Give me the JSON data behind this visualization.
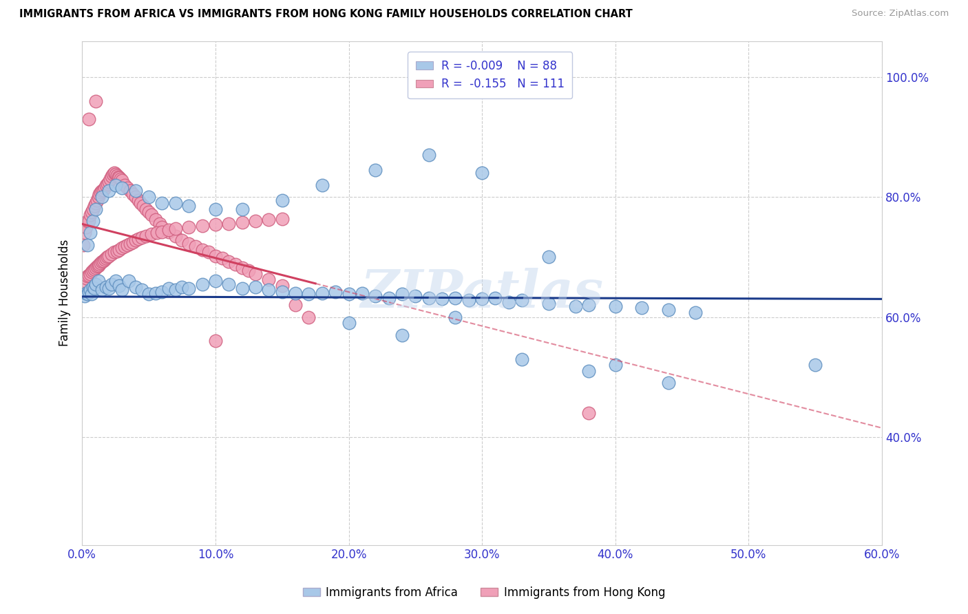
{
  "title": "IMMIGRANTS FROM AFRICA VS IMMIGRANTS FROM HONG KONG FAMILY HOUSEHOLDS CORRELATION CHART",
  "source": "Source: ZipAtlas.com",
  "ylabel": "Family Households",
  "legend_label_blue": "Immigrants from Africa",
  "legend_label_pink": "Immigrants from Hong Kong",
  "R_blue": -0.009,
  "N_blue": 88,
  "R_pink": -0.155,
  "N_pink": 111,
  "xlim": [
    0.0,
    0.6
  ],
  "ylim": [
    0.22,
    1.06
  ],
  "xtick_labels": [
    "0.0%",
    "10.0%",
    "20.0%",
    "30.0%",
    "40.0%",
    "50.0%",
    "60.0%"
  ],
  "xtick_vals": [
    0.0,
    0.1,
    0.2,
    0.3,
    0.4,
    0.5,
    0.6
  ],
  "ytick_labels": [
    "40.0%",
    "60.0%",
    "80.0%",
    "100.0%"
  ],
  "ytick_vals": [
    0.4,
    0.6,
    0.8,
    1.0
  ],
  "color_blue": "#a8c8e8",
  "color_blue_edge": "#6090c0",
  "color_blue_line": "#1a3a8a",
  "color_pink": "#f0a0b8",
  "color_pink_edge": "#d06080",
  "color_pink_line": "#d04060",
  "watermark": "ZIPatlas",
  "blue_trend_x0": 0.0,
  "blue_trend_y0": 0.634,
  "blue_trend_x1": 0.6,
  "blue_trend_y1": 0.63,
  "pink_trend_x0": 0.0,
  "pink_trend_y0": 0.755,
  "pink_trend_solid_end": 0.175,
  "pink_trend_x1": 0.6,
  "pink_trend_y1": 0.415,
  "blue_points_x": [
    0.002,
    0.003,
    0.004,
    0.005,
    0.006,
    0.007,
    0.008,
    0.009,
    0.01,
    0.012,
    0.015,
    0.018,
    0.02,
    0.022,
    0.025,
    0.028,
    0.03,
    0.035,
    0.04,
    0.045,
    0.05,
    0.055,
    0.06,
    0.065,
    0.07,
    0.075,
    0.08,
    0.09,
    0.1,
    0.11,
    0.12,
    0.13,
    0.14,
    0.15,
    0.16,
    0.17,
    0.18,
    0.19,
    0.2,
    0.21,
    0.22,
    0.23,
    0.24,
    0.25,
    0.26,
    0.27,
    0.28,
    0.29,
    0.3,
    0.31,
    0.32,
    0.33,
    0.35,
    0.37,
    0.38,
    0.4,
    0.42,
    0.44,
    0.46,
    0.55,
    0.004,
    0.006,
    0.008,
    0.01,
    0.015,
    0.02,
    0.025,
    0.03,
    0.04,
    0.05,
    0.06,
    0.07,
    0.08,
    0.1,
    0.12,
    0.15,
    0.18,
    0.22,
    0.26,
    0.3,
    0.35,
    0.4,
    0.28,
    0.2,
    0.24,
    0.33,
    0.38,
    0.44
  ],
  "blue_points_y": [
    0.635,
    0.64,
    0.638,
    0.642,
    0.645,
    0.638,
    0.65,
    0.648,
    0.655,
    0.66,
    0.645,
    0.65,
    0.648,
    0.655,
    0.66,
    0.652,
    0.645,
    0.66,
    0.65,
    0.645,
    0.638,
    0.64,
    0.642,
    0.648,
    0.645,
    0.65,
    0.648,
    0.655,
    0.66,
    0.655,
    0.648,
    0.65,
    0.645,
    0.642,
    0.64,
    0.638,
    0.64,
    0.642,
    0.638,
    0.64,
    0.635,
    0.632,
    0.638,
    0.635,
    0.632,
    0.63,
    0.632,
    0.628,
    0.63,
    0.632,
    0.625,
    0.628,
    0.622,
    0.618,
    0.62,
    0.618,
    0.615,
    0.612,
    0.608,
    0.52,
    0.72,
    0.74,
    0.76,
    0.78,
    0.8,
    0.81,
    0.82,
    0.815,
    0.81,
    0.8,
    0.79,
    0.79,
    0.785,
    0.78,
    0.78,
    0.795,
    0.82,
    0.845,
    0.87,
    0.84,
    0.7,
    0.52,
    0.6,
    0.59,
    0.57,
    0.53,
    0.51,
    0.49
  ],
  "pink_points_x": [
    0.001,
    0.002,
    0.003,
    0.004,
    0.005,
    0.006,
    0.007,
    0.008,
    0.009,
    0.01,
    0.011,
    0.012,
    0.013,
    0.014,
    0.015,
    0.016,
    0.017,
    0.018,
    0.019,
    0.02,
    0.021,
    0.022,
    0.023,
    0.024,
    0.025,
    0.026,
    0.027,
    0.028,
    0.029,
    0.03,
    0.032,
    0.034,
    0.036,
    0.038,
    0.04,
    0.042,
    0.044,
    0.046,
    0.048,
    0.05,
    0.052,
    0.055,
    0.058,
    0.06,
    0.065,
    0.07,
    0.075,
    0.08,
    0.085,
    0.09,
    0.095,
    0.1,
    0.105,
    0.11,
    0.115,
    0.12,
    0.125,
    0.13,
    0.14,
    0.15,
    0.002,
    0.003,
    0.004,
    0.005,
    0.006,
    0.007,
    0.008,
    0.009,
    0.01,
    0.011,
    0.012,
    0.013,
    0.014,
    0.015,
    0.016,
    0.017,
    0.018,
    0.019,
    0.02,
    0.022,
    0.024,
    0.026,
    0.028,
    0.03,
    0.032,
    0.034,
    0.036,
    0.038,
    0.04,
    0.042,
    0.045,
    0.048,
    0.052,
    0.056,
    0.06,
    0.065,
    0.07,
    0.08,
    0.09,
    0.1,
    0.11,
    0.12,
    0.13,
    0.14,
    0.15,
    0.16,
    0.17,
    0.1,
    0.38,
    0.01,
    0.005
  ],
  "pink_points_y": [
    0.72,
    0.74,
    0.75,
    0.76,
    0.76,
    0.77,
    0.775,
    0.78,
    0.785,
    0.79,
    0.795,
    0.8,
    0.805,
    0.808,
    0.81,
    0.812,
    0.815,
    0.82,
    0.822,
    0.825,
    0.83,
    0.835,
    0.838,
    0.84,
    0.838,
    0.836,
    0.834,
    0.832,
    0.83,
    0.828,
    0.82,
    0.815,
    0.81,
    0.805,
    0.8,
    0.795,
    0.79,
    0.785,
    0.78,
    0.775,
    0.77,
    0.762,
    0.755,
    0.75,
    0.742,
    0.735,
    0.728,
    0.722,
    0.718,
    0.712,
    0.708,
    0.702,
    0.698,
    0.692,
    0.688,
    0.682,
    0.678,
    0.672,
    0.662,
    0.652,
    0.66,
    0.665,
    0.668,
    0.67,
    0.672,
    0.675,
    0.678,
    0.68,
    0.682,
    0.684,
    0.686,
    0.688,
    0.69,
    0.692,
    0.694,
    0.696,
    0.698,
    0.7,
    0.702,
    0.705,
    0.708,
    0.71,
    0.712,
    0.715,
    0.718,
    0.72,
    0.722,
    0.725,
    0.728,
    0.73,
    0.732,
    0.735,
    0.738,
    0.74,
    0.742,
    0.745,
    0.748,
    0.75,
    0.752,
    0.754,
    0.756,
    0.758,
    0.76,
    0.762,
    0.764,
    0.62,
    0.6,
    0.56,
    0.44,
    0.96,
    0.93
  ]
}
